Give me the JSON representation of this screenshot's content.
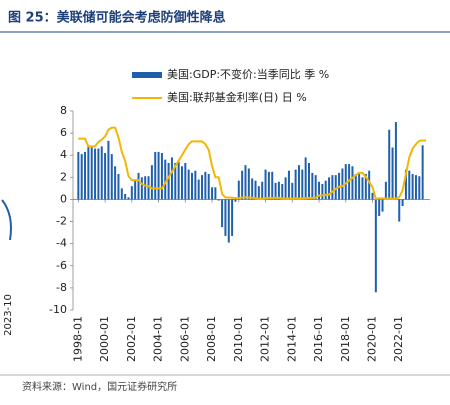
{
  "header": {
    "title": "图 25：美联储可能会考虑防御性降息"
  },
  "fragment": {
    "text": "2023-10"
  },
  "chart_data": {
    "type": "bar-line",
    "x": [
      1998,
      1998.25,
      1998.5,
      1998.75,
      1999,
      1999.25,
      1999.5,
      1999.75,
      2000,
      2000.25,
      2000.5,
      2000.75,
      2001,
      2001.25,
      2001.5,
      2001.75,
      2002,
      2002.25,
      2002.5,
      2002.75,
      2003,
      2003.25,
      2003.5,
      2003.75,
      2004,
      2004.25,
      2004.5,
      2004.75,
      2005,
      2005.25,
      2005.5,
      2005.75,
      2006,
      2006.25,
      2006.5,
      2006.75,
      2007,
      2007.25,
      2007.5,
      2007.75,
      2008,
      2008.25,
      2008.5,
      2008.75,
      2009,
      2009.25,
      2009.5,
      2009.75,
      2010,
      2010.25,
      2010.5,
      2010.75,
      2011,
      2011.25,
      2011.5,
      2011.75,
      2012,
      2012.25,
      2012.5,
      2012.75,
      2013,
      2013.25,
      2013.5,
      2013.75,
      2014,
      2014.25,
      2014.5,
      2014.75,
      2015,
      2015.25,
      2015.5,
      2015.75,
      2016,
      2016.25,
      2016.5,
      2016.75,
      2017,
      2017.25,
      2017.5,
      2017.75,
      2018,
      2018.25,
      2018.5,
      2018.75,
      2019,
      2019.25,
      2019.5,
      2019.75,
      2020,
      2020.25,
      2020.5,
      2020.75,
      2021,
      2021.25,
      2021.5,
      2021.75,
      2022,
      2022.25,
      2022.5,
      2022.75,
      2023,
      2023.25,
      2023.5,
      2023.75,
      2024
    ],
    "series": [
      {
        "name": "美国:GDP:不变价:当季同比 季 %",
        "kind": "bar",
        "color": "#2060ab",
        "values": [
          4.3,
          4.1,
          4.3,
          4.9,
          4.7,
          4.6,
          4.6,
          4.8,
          4.2,
          5.3,
          4.1,
          3.0,
          2.3,
          1.0,
          0.5,
          0.2,
          1.2,
          1.8,
          2.4,
          2.0,
          2.1,
          2.1,
          3.1,
          4.3,
          4.3,
          4.2,
          3.6,
          3.3,
          3.8,
          3.3,
          3.4,
          3.0,
          3.3,
          2.7,
          2.4,
          2.6,
          1.8,
          2.2,
          2.5,
          2.3,
          1.1,
          1.1,
          -0.1,
          -2.5,
          -3.3,
          -3.9,
          -3.3,
          -0.2,
          1.7,
          2.6,
          3.1,
          2.8,
          1.9,
          1.7,
          1.2,
          1.6,
          2.7,
          2.5,
          2.5,
          1.5,
          1.6,
          1.4,
          2.0,
          2.6,
          1.5,
          2.7,
          3.1,
          2.7,
          3.8,
          3.3,
          2.4,
          2.2,
          1.6,
          1.4,
          1.7,
          2.0,
          2.2,
          2.2,
          2.4,
          2.8,
          3.2,
          3.2,
          3.0,
          2.3,
          2.3,
          2.0,
          2.3,
          2.6,
          0.6,
          -8.4,
          -1.5,
          -1.1,
          1.6,
          6.3,
          4.7,
          7.0,
          -2.0,
          -0.6,
          2.7,
          2.6,
          2.3,
          2.2,
          2.1,
          4.9,
          null
        ]
      },
      {
        "name": "美国:联邦基金利率(日) 日 %",
        "kind": "line",
        "color": "#f2b705",
        "values": [
          5.5,
          5.5,
          5.5,
          4.8,
          4.8,
          4.8,
          5.2,
          5.4,
          5.7,
          6.3,
          6.5,
          6.5,
          5.6,
          4.3,
          3.5,
          2.1,
          1.75,
          1.75,
          1.75,
          1.4,
          1.25,
          1.2,
          1.0,
          1.0,
          1.0,
          1.0,
          1.5,
          2.0,
          2.5,
          3.0,
          3.5,
          4.0,
          4.5,
          5.0,
          5.25,
          5.25,
          5.25,
          5.25,
          5.0,
          4.5,
          3.0,
          2.0,
          2.0,
          0.5,
          0.18,
          0.18,
          0.16,
          0.12,
          0.12,
          0.18,
          0.19,
          0.18,
          0.15,
          0.1,
          0.08,
          0.07,
          0.1,
          0.15,
          0.14,
          0.16,
          0.14,
          0.09,
          0.08,
          0.09,
          0.07,
          0.1,
          0.08,
          0.09,
          0.11,
          0.13,
          0.14,
          0.16,
          0.36,
          0.37,
          0.4,
          0.45,
          0.7,
          0.95,
          1.15,
          1.2,
          1.45,
          1.7,
          1.95,
          2.2,
          2.4,
          2.4,
          2.05,
          1.6,
          1.1,
          0.06,
          0.09,
          0.09,
          0.08,
          0.08,
          0.08,
          0.08,
          0.2,
          0.8,
          2.3,
          3.8,
          4.6,
          5.0,
          5.3,
          5.33,
          5.33
        ]
      }
    ],
    "xlim": [
      1997.6,
      2024.3
    ],
    "xticks": [
      {
        "value": 1998,
        "label": "1998-01"
      },
      {
        "value": 2000,
        "label": "2000-01"
      },
      {
        "value": 2002,
        "label": "2002-01"
      },
      {
        "value": 2004,
        "label": "2004-01"
      },
      {
        "value": 2006,
        "label": "2006-01"
      },
      {
        "value": 2008,
        "label": "2008-01"
      },
      {
        "value": 2010,
        "label": "2010-01"
      },
      {
        "value": 2012,
        "label": "2012-01"
      },
      {
        "value": 2014,
        "label": "2014-01"
      },
      {
        "value": 2016,
        "label": "2016-01"
      },
      {
        "value": 2018,
        "label": "2018-01"
      },
      {
        "value": 2020,
        "label": "2020-01"
      },
      {
        "value": 2022,
        "label": "2022-01"
      }
    ],
    "ylim": [
      -10,
      8
    ],
    "yticks": [
      -10,
      -8,
      -6,
      -4,
      -2,
      0,
      2,
      4,
      6,
      8
    ]
  },
  "footer": {
    "source": "资料来源：Wind，国元证券研究所"
  }
}
